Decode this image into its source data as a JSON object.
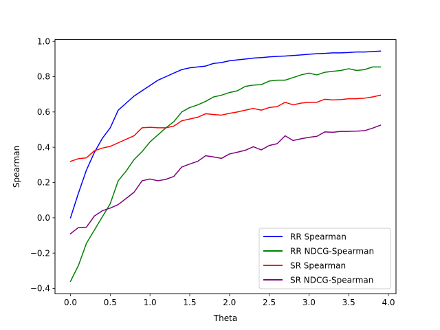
{
  "chart_data": {
    "type": "line",
    "xlabel": "Theta",
    "ylabel": "Spearman",
    "xlim": [
      -0.195,
      4.095
    ],
    "ylim": [
      -0.43,
      1.01
    ],
    "xticks": [
      0.0,
      0.5,
      1.0,
      1.5,
      2.0,
      2.5,
      3.0,
      3.5,
      4.0
    ],
    "xtick_labels": [
      "0.0",
      "0.5",
      "1.0",
      "1.5",
      "2.0",
      "2.5",
      "3.0",
      "3.5",
      "4.0"
    ],
    "yticks": [
      -0.4,
      -0.2,
      0.0,
      0.2,
      0.4,
      0.6,
      0.8,
      1.0
    ],
    "ytick_labels": [
      "−0.4",
      "−0.2",
      "0.0",
      "0.2",
      "0.4",
      "0.6",
      "0.8",
      "1.0"
    ],
    "grid": false,
    "legend_position": "bottom-right",
    "x": [
      0.0,
      0.1,
      0.2,
      0.3,
      0.4,
      0.5,
      0.6,
      0.7,
      0.8,
      0.9,
      1.0,
      1.1,
      1.2,
      1.3,
      1.4,
      1.5,
      1.6,
      1.7,
      1.8,
      1.9,
      2.0,
      2.1,
      2.2,
      2.3,
      2.4,
      2.5,
      2.6,
      2.7,
      2.8,
      2.9,
      3.0,
      3.1,
      3.2,
      3.3,
      3.4,
      3.5,
      3.6,
      3.7,
      3.8,
      3.9
    ],
    "series": [
      {
        "name": "RR Spearman",
        "color": "#0000ff",
        "values": [
          0.0,
          0.14,
          0.27,
          0.37,
          0.45,
          0.51,
          0.61,
          0.65,
          0.69,
          0.72,
          0.75,
          0.78,
          0.8,
          0.82,
          0.84,
          0.85,
          0.855,
          0.86,
          0.875,
          0.88,
          0.89,
          0.895,
          0.9,
          0.905,
          0.908,
          0.912,
          0.915,
          0.917,
          0.92,
          0.923,
          0.927,
          0.93,
          0.932,
          0.935,
          0.935,
          0.937,
          0.94,
          0.94,
          0.942,
          0.945
        ]
      },
      {
        "name": "RR NDCG-Spearman",
        "color": "#008000",
        "values": [
          -0.36,
          -0.27,
          -0.145,
          -0.07,
          0.005,
          0.08,
          0.21,
          0.265,
          0.33,
          0.375,
          0.43,
          0.47,
          0.51,
          0.545,
          0.6,
          0.625,
          0.64,
          0.66,
          0.685,
          0.695,
          0.71,
          0.72,
          0.745,
          0.752,
          0.755,
          0.775,
          0.78,
          0.78,
          0.795,
          0.81,
          0.82,
          0.81,
          0.825,
          0.83,
          0.835,
          0.845,
          0.835,
          0.84,
          0.855,
          0.855
        ]
      },
      {
        "name": "SR Spearman",
        "color": "#ff0000",
        "values": [
          0.32,
          0.335,
          0.34,
          0.38,
          0.395,
          0.405,
          0.425,
          0.445,
          0.465,
          0.51,
          0.513,
          0.51,
          0.51,
          0.52,
          0.55,
          0.56,
          0.57,
          0.59,
          0.585,
          0.582,
          0.592,
          0.6,
          0.61,
          0.62,
          0.61,
          0.625,
          0.63,
          0.655,
          0.64,
          0.65,
          0.655,
          0.655,
          0.672,
          0.668,
          0.67,
          0.675,
          0.675,
          0.678,
          0.685,
          0.695
        ]
      },
      {
        "name": "SR NDCG-Spearman",
        "color": "#800080",
        "values": [
          -0.09,
          -0.055,
          -0.053,
          0.01,
          0.04,
          0.055,
          0.075,
          0.11,
          0.145,
          0.21,
          0.22,
          0.21,
          0.218,
          0.235,
          0.288,
          0.305,
          0.32,
          0.352,
          0.345,
          0.337,
          0.362,
          0.372,
          0.383,
          0.403,
          0.385,
          0.41,
          0.42,
          0.465,
          0.438,
          0.448,
          0.456,
          0.462,
          0.487,
          0.485,
          0.49,
          0.49,
          0.491,
          0.494,
          0.508,
          0.525
        ]
      }
    ]
  }
}
